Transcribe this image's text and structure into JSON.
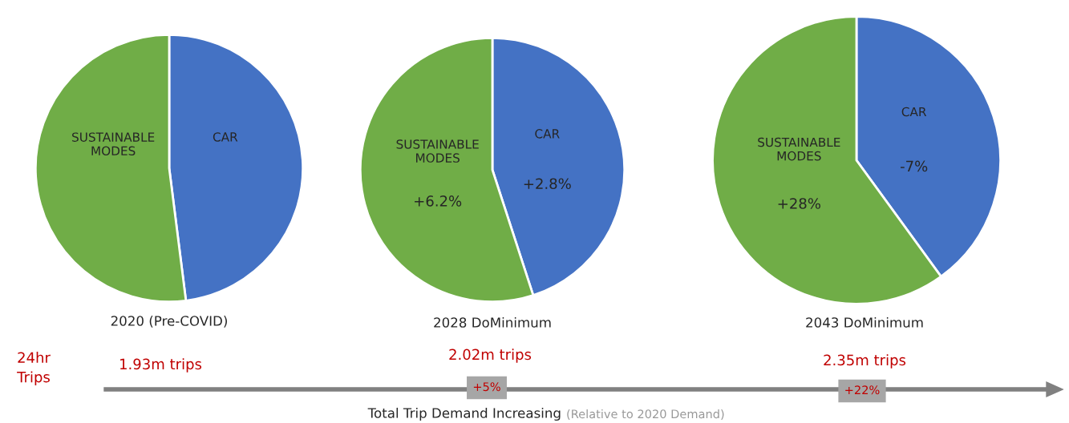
{
  "chart_data": [
    {
      "type": "pie",
      "title": "2020 (Pre-COVID)",
      "categories": [
        "CAR",
        "SUSTAINABLE\nMODES"
      ],
      "values": [
        48,
        52
      ],
      "colors": [
        "#4472c4",
        "#70ad47"
      ],
      "annotations": [
        "24hr\nTrips",
        "1.93m trips",
        "Total Trip Demand Increasing",
        "(Relative to 2020 Demand)"
      ]
    },
    {
      "type": "pie",
      "title": "2028 DoMinimum",
      "categories": [
        "CAR",
        "SUSTAINABLE\nMODES"
      ],
      "values": [
        45,
        55
      ],
      "colors": [
        "#4472c4",
        "#70ad47"
      ],
      "annotations": [
        "+2.8%",
        "+6.2%",
        "2.02m trips",
        "+5%"
      ]
    },
    {
      "type": "pie",
      "title": "2043 DoMinimum",
      "categories": [
        "CAR",
        "SUSTAINABLE\nMODES"
      ],
      "values": [
        40,
        60
      ],
      "colors": [
        "#4472c4",
        "#70ad47"
      ],
      "annotations": [
        "-7%",
        "+28%",
        "2.35m trips",
        "+22%"
      ]
    }
  ]
}
